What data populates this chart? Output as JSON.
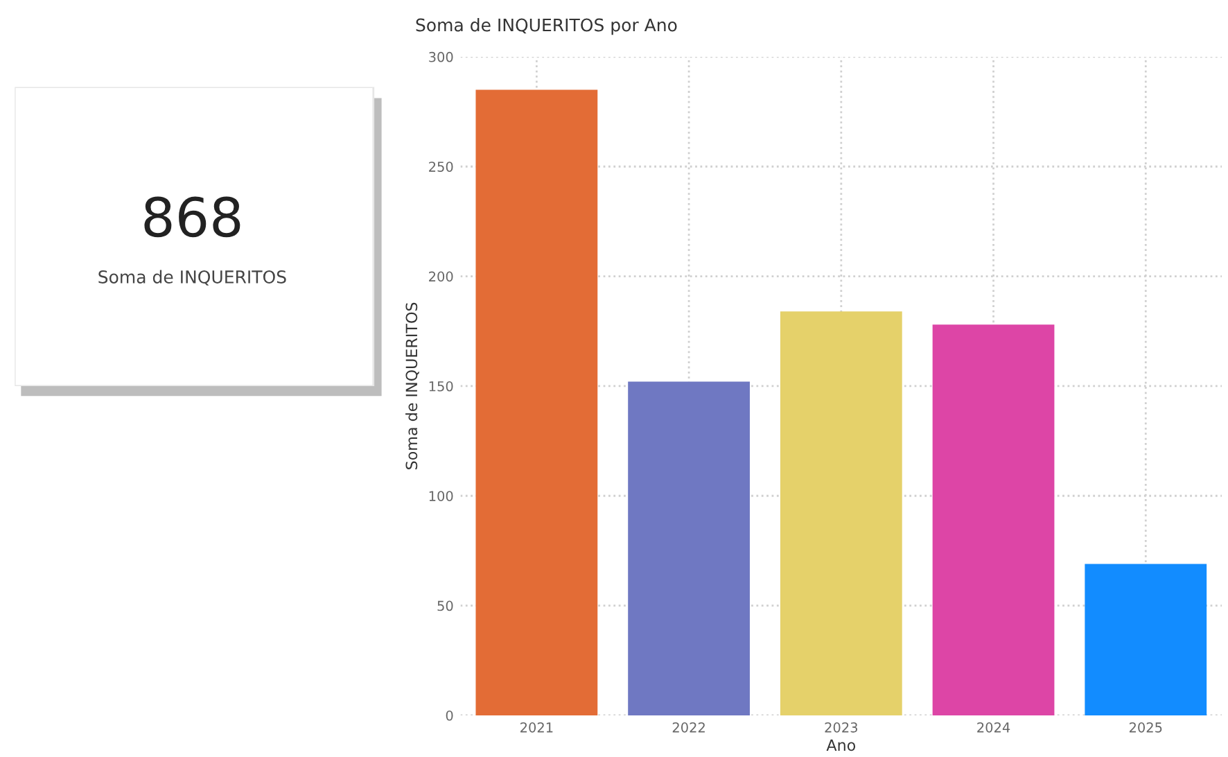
{
  "chart_data": [
    {
      "type": "other",
      "title": "868",
      "subtitle": "Soma de INQUERITOS"
    },
    {
      "type": "bar",
      "title": "Soma de INQUERITOS por Ano",
      "xlabel": "Ano",
      "ylabel": "Soma de INQUERITOS",
      "categories": [
        "2021",
        "2022",
        "2023",
        "2024",
        "2025"
      ],
      "values": [
        285,
        152,
        184,
        178,
        69
      ],
      "colors": [
        "#e36c36",
        "#6f78c2",
        "#e5d16a",
        "#dd45a6",
        "#128cff"
      ],
      "ylim": [
        0,
        300
      ],
      "yticks": [
        0,
        50,
        100,
        150,
        200,
        250,
        300
      ],
      "grid": true
    }
  ]
}
